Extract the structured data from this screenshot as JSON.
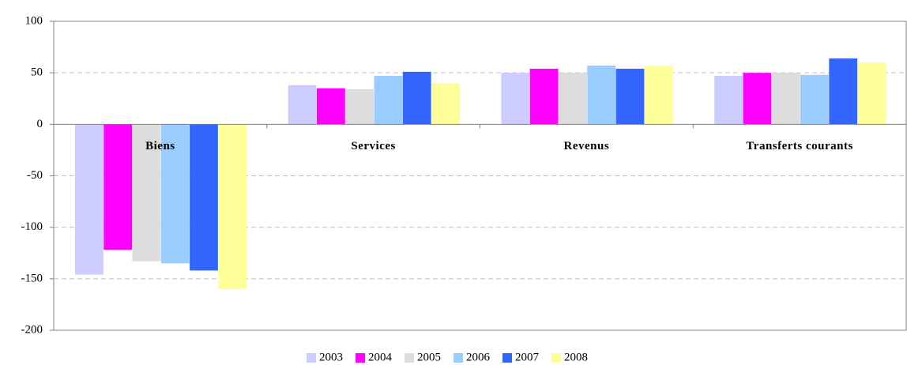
{
  "chart_data": {
    "type": "bar",
    "categories": [
      "Biens",
      "Services",
      "Revenus",
      "Transferts courants"
    ],
    "series": [
      {
        "name": "2003",
        "color": "#ccccff",
        "values": [
          -146,
          38,
          50,
          47
        ]
      },
      {
        "name": "2004",
        "color": "#ff00ff",
        "values": [
          -122,
          35,
          54,
          50
        ]
      },
      {
        "name": "2005",
        "color": "#dddddd",
        "values": [
          -133,
          34,
          50,
          50
        ]
      },
      {
        "name": "2006",
        "color": "#99ccff",
        "values": [
          -135,
          47,
          57,
          48
        ]
      },
      {
        "name": "2007",
        "color": "#3366ff",
        "values": [
          -142,
          51,
          54,
          64
        ]
      },
      {
        "name": "2008",
        "color": "#ffff99",
        "values": [
          -160,
          40,
          57,
          60
        ]
      }
    ],
    "ylim": [
      -200,
      100
    ],
    "yticks": [
      -200,
      -150,
      -100,
      -50,
      0,
      50,
      100
    ],
    "grid": true,
    "legend": "bottom"
  }
}
